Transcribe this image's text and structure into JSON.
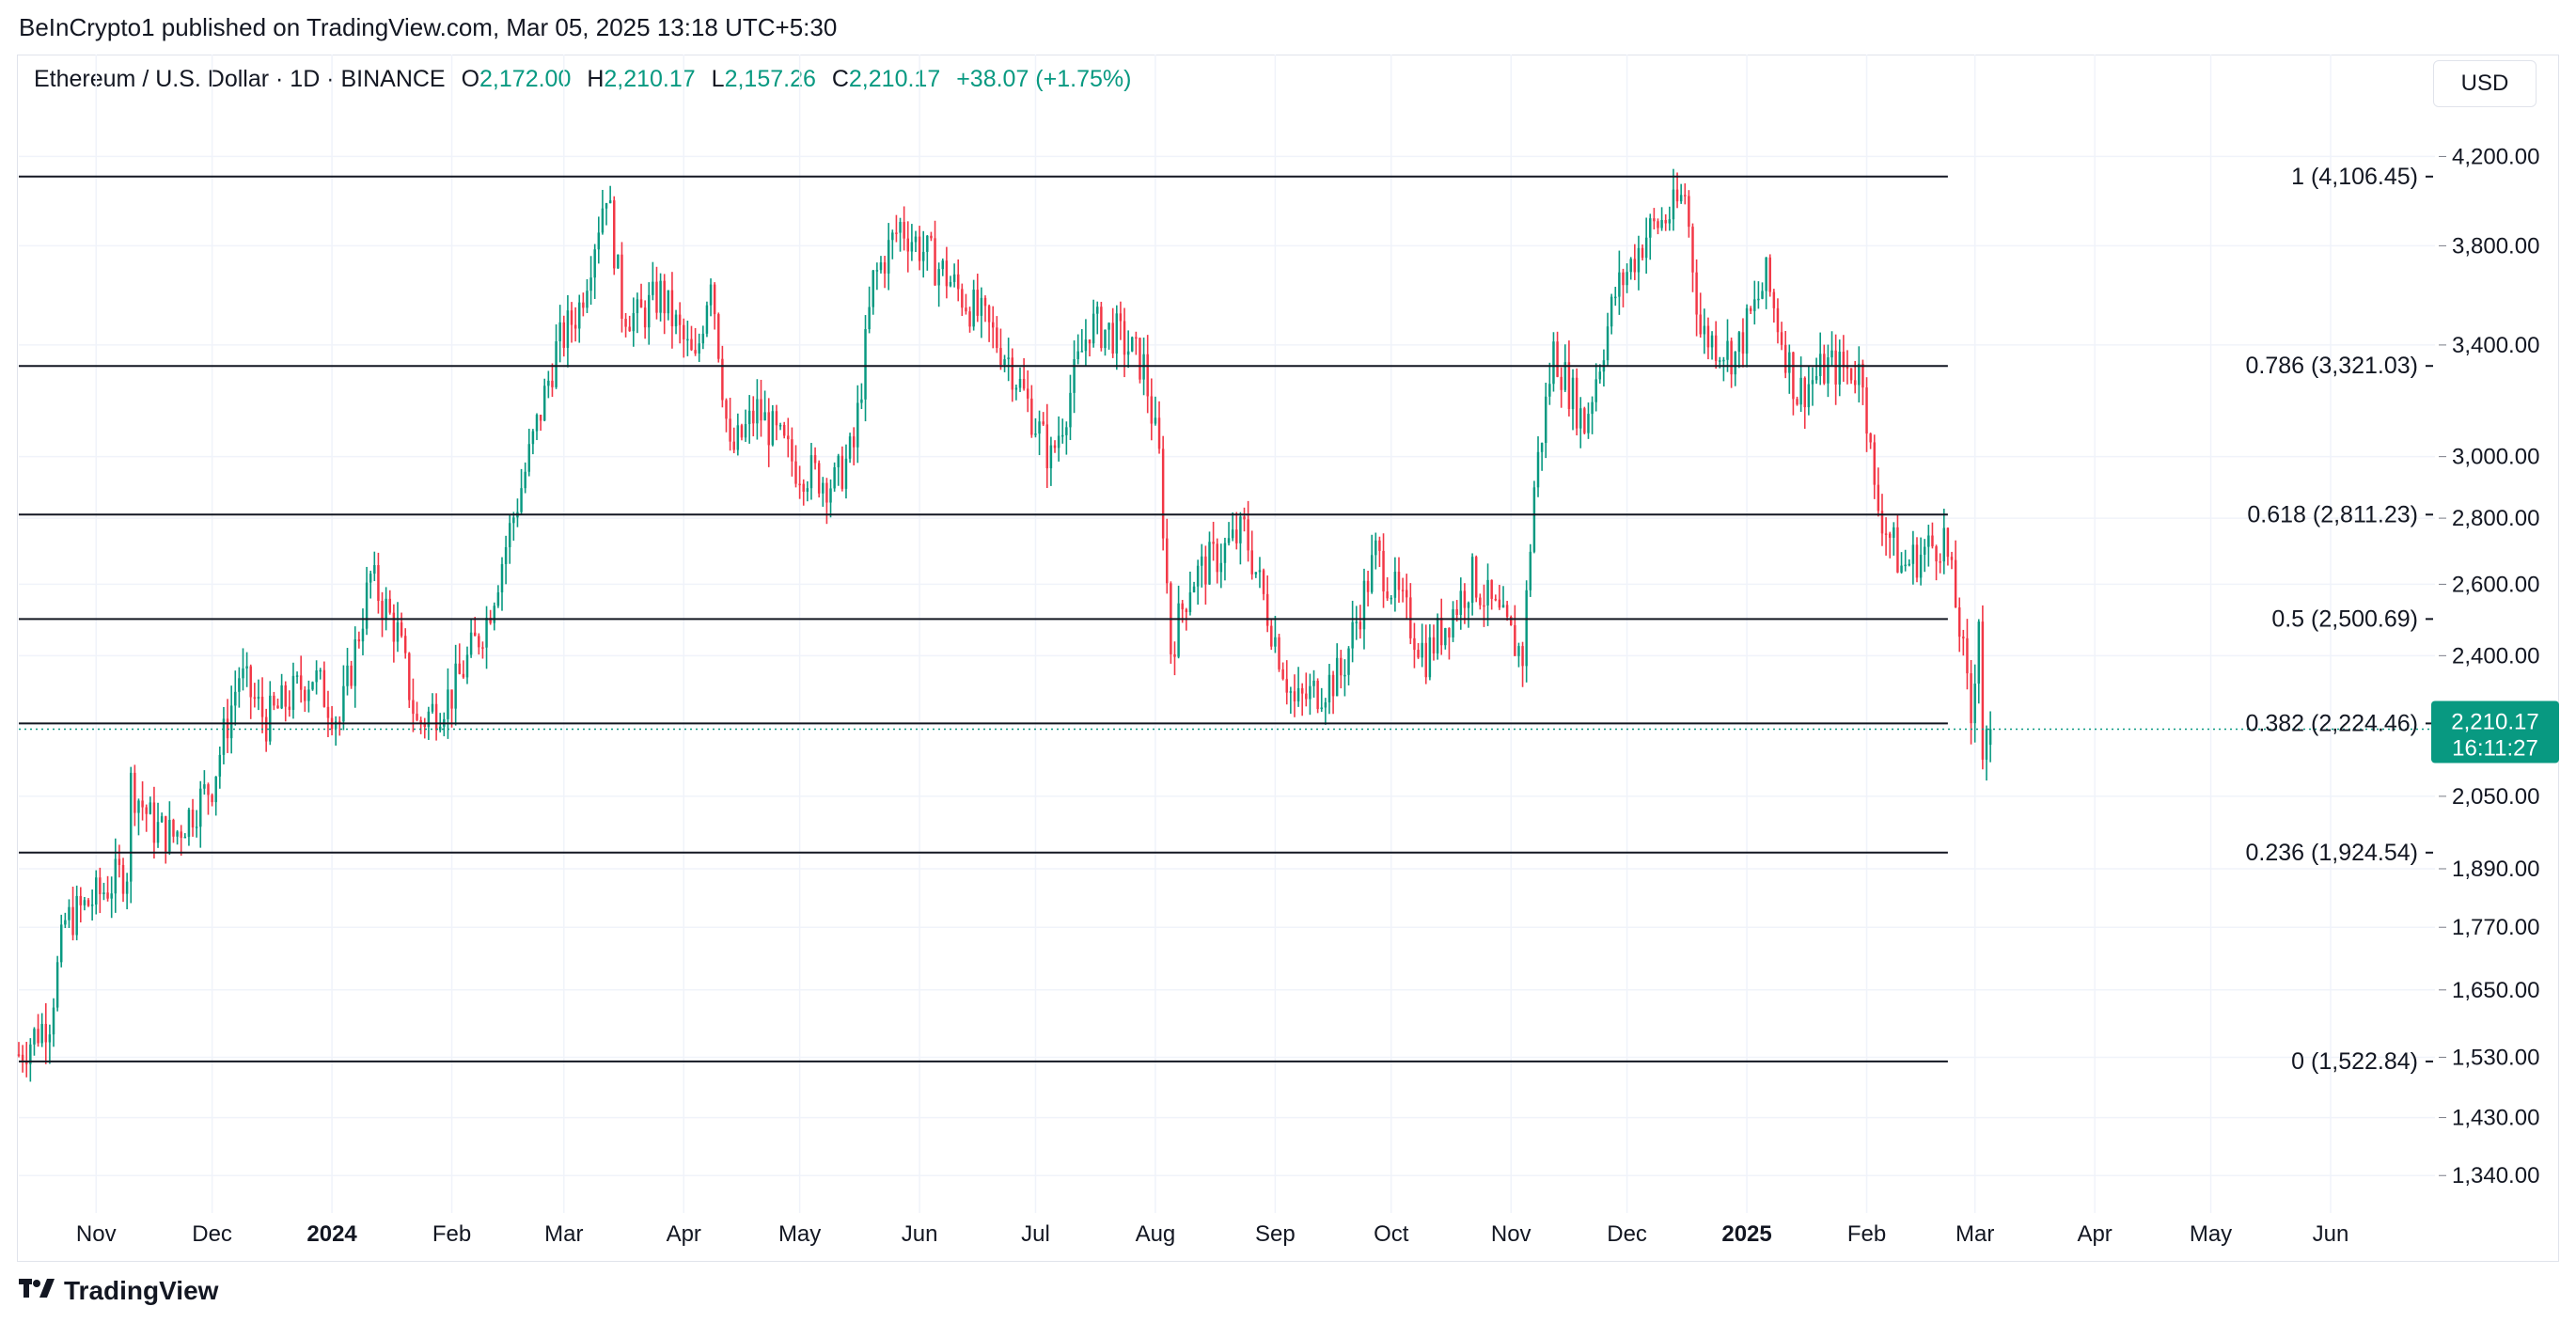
{
  "header": {
    "publisher": "BeInCrypto1 published on TradingView.com, Mar 05, 2025 13:18 UTC+5:30"
  },
  "legend": {
    "symbol": "Ethereum / U.S. Dollar · 1D · BINANCE",
    "o_label": "O",
    "o_value": "2,172.00",
    "h_label": "H",
    "h_value": "2,210.17",
    "l_label": "L",
    "l_value": "2,157.26",
    "c_label": "C",
    "c_value": "2,210.17",
    "change": "+38.07 (+1.75%)"
  },
  "unit": "USD",
  "brand": {
    "name": "TradingView",
    "logo_icon": "tradingview-logo-icon"
  },
  "price_badge": {
    "price": "2,210.17",
    "countdown": "16:11:27",
    "color": "#089981"
  },
  "chart_data": {
    "type": "candlestick",
    "scale": "log",
    "y_ticks": [
      4200,
      3800,
      3400,
      3000,
      2800,
      2600,
      2400,
      2050,
      1890,
      1770,
      1650,
      1530,
      1430,
      1340
    ],
    "y_tick_labels": [
      "4,200.00",
      "3,800.00",
      "3,400.00",
      "3,000.00",
      "2,800.00",
      "2,600.00",
      "2,400.00",
      "2,050.00",
      "1,890.00",
      "1,770.00",
      "1,650.00",
      "1,530.00",
      "1,430.00",
      "1,340.00"
    ],
    "x_ticks": [
      {
        "date": "2023-11-01",
        "label": "Nov",
        "bold": false
      },
      {
        "date": "2023-12-01",
        "label": "Dec",
        "bold": false
      },
      {
        "date": "2024-01-01",
        "label": "2024",
        "bold": true
      },
      {
        "date": "2024-02-01",
        "label": "Feb",
        "bold": false
      },
      {
        "date": "2024-03-01",
        "label": "Mar",
        "bold": false
      },
      {
        "date": "2024-04-01",
        "label": "Apr",
        "bold": false
      },
      {
        "date": "2024-05-01",
        "label": "May",
        "bold": false
      },
      {
        "date": "2024-06-01",
        "label": "Jun",
        "bold": false
      },
      {
        "date": "2024-07-01",
        "label": "Jul",
        "bold": false
      },
      {
        "date": "2024-08-01",
        "label": "Aug",
        "bold": false
      },
      {
        "date": "2024-09-01",
        "label": "Sep",
        "bold": false
      },
      {
        "date": "2024-10-01",
        "label": "Oct",
        "bold": false
      },
      {
        "date": "2024-11-01",
        "label": "Nov",
        "bold": false
      },
      {
        "date": "2024-12-01",
        "label": "Dec",
        "bold": false
      },
      {
        "date": "2025-01-01",
        "label": "2025",
        "bold": true
      },
      {
        "date": "2025-02-01",
        "label": "Feb",
        "bold": false
      },
      {
        "date": "2025-03-01",
        "label": "Mar",
        "bold": false
      },
      {
        "date": "2025-04-01",
        "label": "Apr",
        "bold": false
      },
      {
        "date": "2025-05-01",
        "label": "May",
        "bold": false
      },
      {
        "date": "2025-06-01",
        "label": "Jun",
        "bold": false
      }
    ],
    "x_range": [
      "2023-10-12",
      "2025-06-28"
    ],
    "y_range": [
      1285,
      4420
    ],
    "fib_levels": [
      {
        "label": "1 (4,106.45)",
        "value": 4106.45
      },
      {
        "label": "0.786 (3,321.03)",
        "value": 3321.03
      },
      {
        "label": "0.618 (2,811.23)",
        "value": 2811.23
      },
      {
        "label": "0.5 (2,500.69)",
        "value": 2500.69
      },
      {
        "label": "0.382 (2,224.46)",
        "value": 2224.46
      },
      {
        "label": "0.236 (1,924.54)",
        "value": 1924.54
      },
      {
        "label": "0 (1,522.84)",
        "value": 1522.84
      }
    ],
    "fib_start_date": "2023-10-12",
    "fib_end_date": "2025-02-22",
    "current_price": 2210.17,
    "up_color": "#089981",
    "down_color": "#f23645",
    "grid": true,
    "closes": [
      [
        "2023-10-12",
        1535
      ],
      [
        "2023-10-20",
        1600
      ],
      [
        "2023-10-24",
        1780
      ],
      [
        "2023-11-01",
        1830
      ],
      [
        "2023-11-09",
        1890
      ],
      [
        "2023-11-10",
        2080
      ],
      [
        "2023-11-16",
        1980
      ],
      [
        "2023-11-21",
        1960
      ],
      [
        "2023-12-01",
        2080
      ],
      [
        "2023-12-08",
        2350
      ],
      [
        "2023-12-15",
        2230
      ],
      [
        "2023-12-27",
        2350
      ],
      [
        "2024-01-03",
        2230
      ],
      [
        "2024-01-11",
        2620
      ],
      [
        "2024-01-18",
        2460
      ],
      [
        "2024-01-23",
        2220
      ],
      [
        "2024-02-01",
        2300
      ],
      [
        "2024-02-10",
        2500
      ],
      [
        "2024-02-20",
        2950
      ],
      [
        "2024-02-28",
        3380
      ],
      [
        "2024-03-05",
        3550
      ],
      [
        "2024-03-12",
        4060
      ],
      [
        "2024-03-16",
        3550
      ],
      [
        "2024-03-20",
        3500
      ],
      [
        "2024-03-26",
        3600
      ],
      [
        "2024-04-04",
        3320
      ],
      [
        "2024-04-08",
        3700
      ],
      [
        "2024-04-13",
        3000
      ],
      [
        "2024-04-20",
        3160
      ],
      [
        "2024-04-30",
        2970
      ],
      [
        "2024-05-10",
        2910
      ],
      [
        "2024-05-15",
        3030
      ],
      [
        "2024-05-20",
        3650
      ],
      [
        "2024-05-27",
        3890
      ],
      [
        "2024-06-07",
        3690
      ],
      [
        "2024-06-18",
        3480
      ],
      [
        "2024-06-24",
        3350
      ],
      [
        "2024-07-05",
        2990
      ],
      [
        "2024-07-15",
        3480
      ],
      [
        "2024-07-22",
        3440
      ],
      [
        "2024-07-29",
        3320
      ],
      [
        "2024-08-02",
        2990
      ],
      [
        "2024-08-05",
        2420
      ],
      [
        "2024-08-10",
        2610
      ],
      [
        "2024-08-24",
        2760
      ],
      [
        "2024-09-06",
        2270
      ],
      [
        "2024-09-18",
        2350
      ],
      [
        "2024-09-27",
        2690
      ],
      [
        "2024-10-10",
        2400
      ],
      [
        "2024-10-22",
        2620
      ],
      [
        "2024-11-04",
        2400
      ],
      [
        "2024-11-07",
        2900
      ],
      [
        "2024-11-12",
        3380
      ],
      [
        "2024-11-20",
        3110
      ],
      [
        "2024-11-28",
        3600
      ],
      [
        "2024-12-06",
        3850
      ],
      [
        "2024-12-13",
        3950
      ],
      [
        "2024-12-16",
        4030
      ],
      [
        "2024-12-20",
        3450
      ],
      [
        "2024-12-29",
        3360
      ],
      [
        "2025-01-06",
        3660
      ],
      [
        "2025-01-14",
        3220
      ],
      [
        "2025-01-22",
        3320
      ],
      [
        "2025-01-31",
        3300
      ],
      [
        "2025-02-03",
        2870
      ],
      [
        "2025-02-10",
        2650
      ],
      [
        "2025-02-21",
        2740
      ],
      [
        "2025-02-25",
        2480
      ],
      [
        "2025-02-28",
        2230
      ],
      [
        "2025-03-02",
        2520
      ],
      [
        "2025-03-03",
        2150
      ],
      [
        "2025-03-05",
        2210.17
      ]
    ]
  }
}
